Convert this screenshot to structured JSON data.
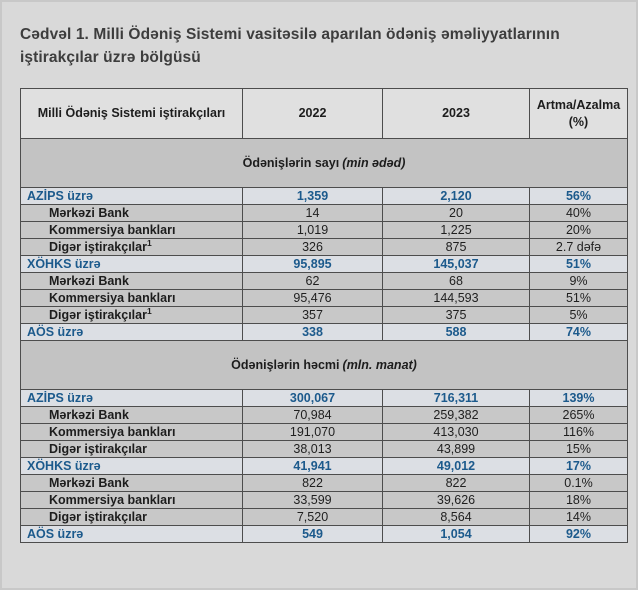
{
  "title": "Cədvəl 1. Milli Ödəniş Sistemi vasitəsilə aparılan ödəniş əməliyyatlarının iştirakçılar üzrə bölgüsü",
  "colors": {
    "page_bg": "#d9d9d9",
    "header_bg": "#e0e0e0",
    "band_bg": "#c3c3c3",
    "group_row_bg": "#dcdfe4",
    "sub_row_bg": "#c8c8c8",
    "accent_blue": "#1c5a8c",
    "border": "#4d4d4d"
  },
  "table": {
    "columns": [
      "Milli Ödəniş Sistemi iştirakçıları",
      "2022",
      "2023",
      "Artma/Azalma (%)"
    ],
    "sections": [
      {
        "title": "Ödənişlərin sayı",
        "unit": "(min ədəd)",
        "rows": [
          {
            "type": "group",
            "label": "AZİPS üzrə",
            "y2022": "1,359",
            "y2023": "2,120",
            "change": "56%"
          },
          {
            "type": "sub",
            "label": "Mərkəzi Bank",
            "y2022": "14",
            "y2023": "20",
            "change": "40%"
          },
          {
            "type": "sub",
            "label": "Kommersiya bankları",
            "y2022": "1,019",
            "y2023": "1,225",
            "change": "20%"
          },
          {
            "type": "sub",
            "label": "Digər iştirakçılar",
            "sup": "1",
            "y2022": "326",
            "y2023": "875",
            "change": "2.7 dəfə"
          },
          {
            "type": "group",
            "label": "XÖHKS üzrə",
            "y2022": "95,895",
            "y2023": "145,037",
            "change": "51%"
          },
          {
            "type": "sub",
            "label": "Mərkəzi Bank",
            "y2022": "62",
            "y2023": "68",
            "change": "9%"
          },
          {
            "type": "sub",
            "label": "Kommersiya bankları",
            "y2022": "95,476",
            "y2023": "144,593",
            "change": "51%"
          },
          {
            "type": "sub",
            "label": "Digər iştirakçılar",
            "sup": "1",
            "y2022": "357",
            "y2023": "375",
            "change": "5%"
          },
          {
            "type": "group",
            "label": "AÖS üzrə",
            "y2022": "338",
            "y2023": "588",
            "change": "74%"
          }
        ]
      },
      {
        "title": "Ödənişlərin həcmi",
        "unit": "(mln. manat)",
        "rows": [
          {
            "type": "group",
            "label": "AZİPS üzrə",
            "y2022": "300,067",
            "y2023": "716,311",
            "change": "139%"
          },
          {
            "type": "sub",
            "label": "Mərkəzi Bank",
            "y2022": "70,984",
            "y2023": "259,382",
            "change": "265%"
          },
          {
            "type": "sub",
            "label": "Kommersiya bankları",
            "y2022": "191,070",
            "y2023": "413,030",
            "change": "116%"
          },
          {
            "type": "sub",
            "label": "Digər iştirakçılar",
            "y2022": "38,013",
            "y2023": "43,899",
            "change": "15%"
          },
          {
            "type": "group",
            "label": "XÖHKS üzrə",
            "y2022": "41,941",
            "y2023": "49,012",
            "change": "17%"
          },
          {
            "type": "sub",
            "label": "Mərkəzi Bank",
            "y2022": "822",
            "y2023": "822",
            "change": "0.1%"
          },
          {
            "type": "sub",
            "label": "Kommersiya bankları",
            "y2022": "33,599",
            "y2023": "39,626",
            "change": "18%"
          },
          {
            "type": "sub",
            "label": "Digər iştirakçılar",
            "y2022": "7,520",
            "y2023": "8,564",
            "change": "14%"
          },
          {
            "type": "group",
            "label": "AÖS üzrə",
            "y2022": "549",
            "y2023": "1,054",
            "change": "92%"
          }
        ]
      }
    ]
  }
}
